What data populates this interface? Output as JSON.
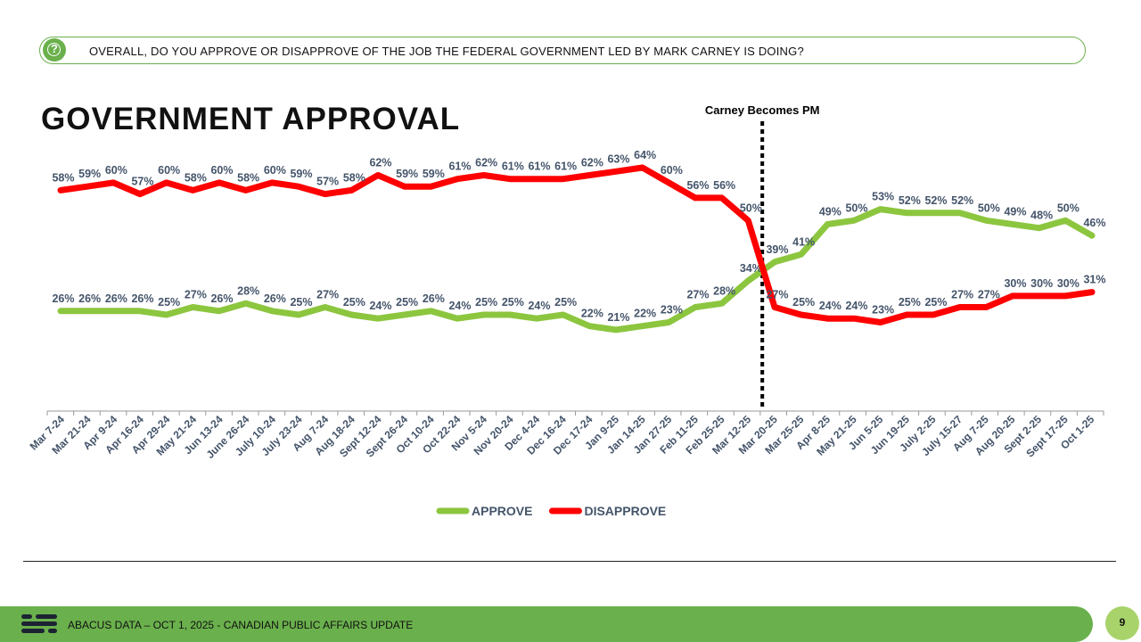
{
  "question": {
    "icon": "question-circle-icon",
    "text": "OVERALL, DO YOU APPROVE OR DISAPPROVE OF THE JOB THE FEDERAL GOVERNMENT LED BY MARK CARNEY IS DOING?"
  },
  "footer": {
    "text": "ABACUS DATA – OCT 1, 2025 - CANADIAN PUBLIC AFFAIRS UPDATE",
    "page_number": "9"
  },
  "chart_data": {
    "type": "line",
    "title": "GOVERNMENT APPROVAL",
    "x": [
      "Mar 7-24",
      "Mar 21-24",
      "Apr 9-24",
      "Apr 16-24",
      "Apr 29-24",
      "May 21-24",
      "Jun 13-24",
      "June 26-24",
      "July 10-24",
      "July 23-24",
      "Aug 7-24",
      "Aug 18-24",
      "Sept 12-24",
      "Sept 26-24",
      "Oct 10-24",
      "Oct 22-24",
      "Nov 5-24",
      "Nov 20-24",
      "Dec 4-24",
      "Dec 16-24",
      "Dec 17-24",
      "Jan 9-25",
      "Jan 14-25",
      "Jan 27-25",
      "Feb 11-25",
      "Feb 25-25",
      "Mar 12-25",
      "Mar 20-25",
      "Mar 25-25",
      "Apr 8-25",
      "May 21-25",
      "Jun 5-25",
      "Jun 19-25",
      "July 2-25",
      "July 15-27",
      "Aug 7-25",
      "Aug 20-25",
      "Sept 2-25",
      "Sept 17-25",
      "Oct 1-25"
    ],
    "series": [
      {
        "name": "APPROVE",
        "color": "#8cc63f",
        "values": [
          26,
          26,
          26,
          26,
          25,
          27,
          26,
          28,
          26,
          25,
          27,
          25,
          24,
          25,
          26,
          24,
          25,
          25,
          24,
          25,
          22,
          21,
          22,
          23,
          27,
          28,
          34,
          39,
          41,
          49,
          50,
          53,
          52,
          52,
          52,
          50,
          49,
          48,
          50,
          46
        ]
      },
      {
        "name": "DISAPPROVE",
        "color": "#ff0000",
        "values": [
          58,
          59,
          60,
          57,
          60,
          58,
          60,
          58,
          60,
          59,
          57,
          58,
          62,
          59,
          59,
          61,
          62,
          61,
          61,
          61,
          62,
          63,
          64,
          60,
          56,
          56,
          50,
          27,
          25,
          24,
          24,
          23,
          25,
          25,
          27,
          27,
          30,
          30,
          30,
          31
        ]
      }
    ],
    "event": {
      "label": "Carney Becomes PM",
      "position_after_index": 26
    },
    "legend": "bottom-center",
    "grid": false
  }
}
